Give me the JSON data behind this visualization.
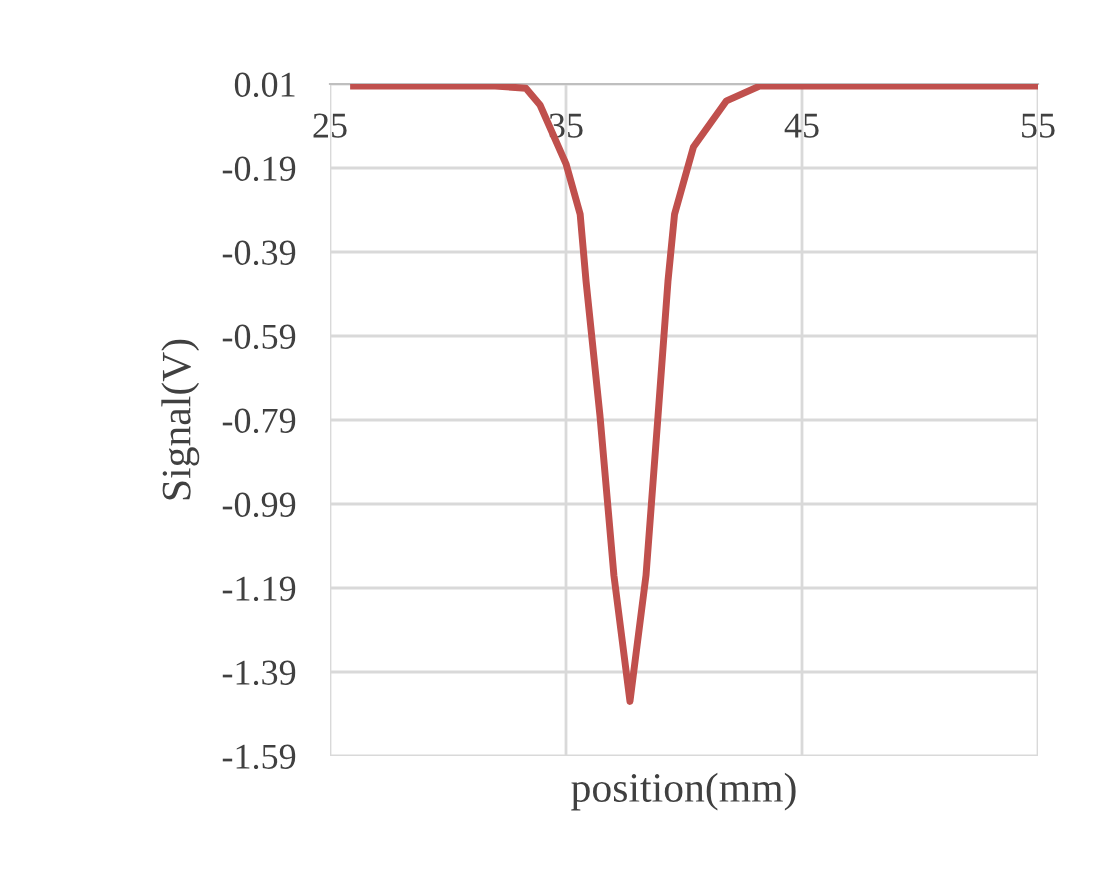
{
  "chart_data": {
    "type": "line",
    "xlabel": "position(mm)",
    "ylabel": "Signal(V)",
    "xlim": [
      25,
      55
    ],
    "xticks": [
      25,
      35,
      45,
      55
    ],
    "ylim": [
      -1.59,
      0.01
    ],
    "yticks": [
      0.01,
      -0.19,
      -0.39,
      -0.59,
      -0.79,
      -0.99,
      -1.19,
      -1.39,
      -1.59
    ],
    "grid": true,
    "marker": "none",
    "line_style": "solid",
    "series": [
      {
        "color": "#c0504d",
        "x": [
          26,
          28,
          30,
          32,
          33.3,
          33.9,
          35,
          35.6,
          35.85,
          36.44,
          37.03,
          37.71,
          38.39,
          38.9,
          39.32,
          39.6,
          40.4,
          41.8,
          43.2,
          45,
          47,
          49,
          51,
          53,
          55
        ],
        "values": [
          0.005,
          0.005,
          0.005,
          0.005,
          0.0,
          -0.04,
          -0.18,
          -0.3,
          -0.46,
          -0.78,
          -1.16,
          -1.46,
          -1.16,
          -0.78,
          -0.46,
          -0.3,
          -0.14,
          -0.03,
          0.005,
          0.005,
          0.005,
          0.005,
          0.005,
          0.005,
          0.005
        ]
      }
    ]
  }
}
